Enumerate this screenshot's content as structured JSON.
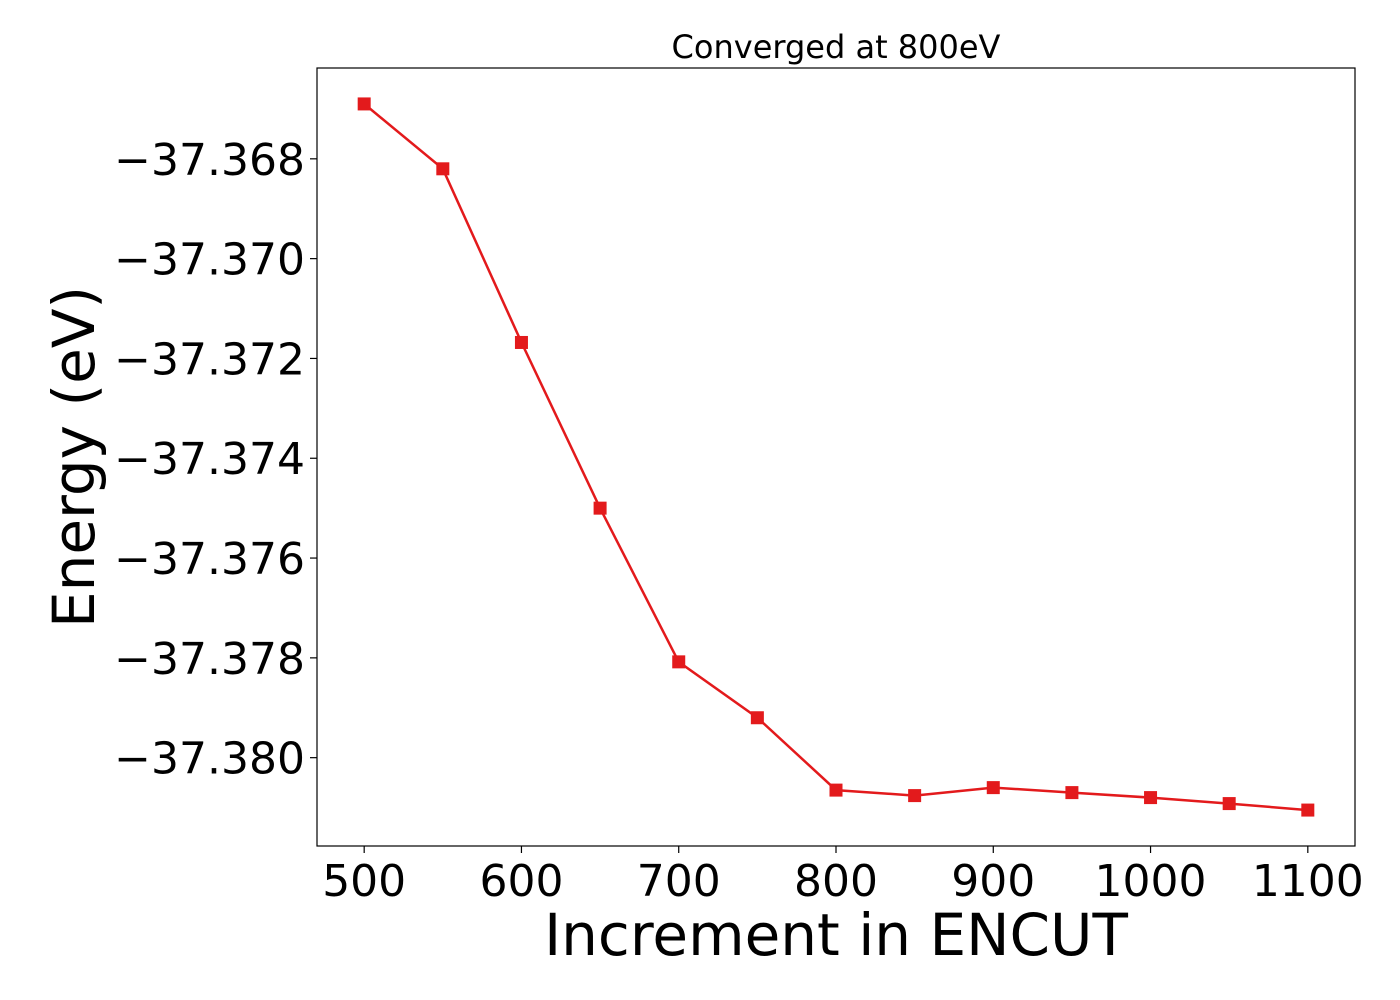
{
  "chart_data": {
    "type": "line",
    "title": "Converged at 800eV",
    "xlabel": "Increment in ENCUT",
    "ylabel": "Energy (eV)",
    "x": [
      500,
      550,
      600,
      650,
      700,
      750,
      800,
      850,
      900,
      950,
      1000,
      1050,
      1100
    ],
    "series": [
      {
        "values": [
          -37.3669,
          -37.3682,
          -37.37168,
          -37.375,
          -37.37808,
          -37.3792,
          -37.38065,
          -37.38076,
          -37.3806,
          -37.3807,
          -37.3808,
          -37.38092,
          -37.38105
        ],
        "color": "#e31a1c",
        "marker": "square"
      }
    ],
    "xlim": [
      470,
      1130
    ],
    "ylim": [
      -37.38177,
      -37.36618
    ],
    "xticks": [
      500,
      600,
      700,
      800,
      900,
      1000,
      1100
    ],
    "xtick_labels": [
      "500",
      "600",
      "700",
      "800",
      "900",
      "1000",
      "1100"
    ],
    "yticks": [
      -37.38,
      -37.378,
      -37.376,
      -37.374,
      -37.372,
      -37.37,
      -37.368
    ],
    "ytick_labels": [
      "−37.380",
      "−37.378",
      "−37.376",
      "−37.374",
      "−37.372",
      "−37.370",
      "−37.368"
    ],
    "grid": false,
    "legend": "none"
  }
}
